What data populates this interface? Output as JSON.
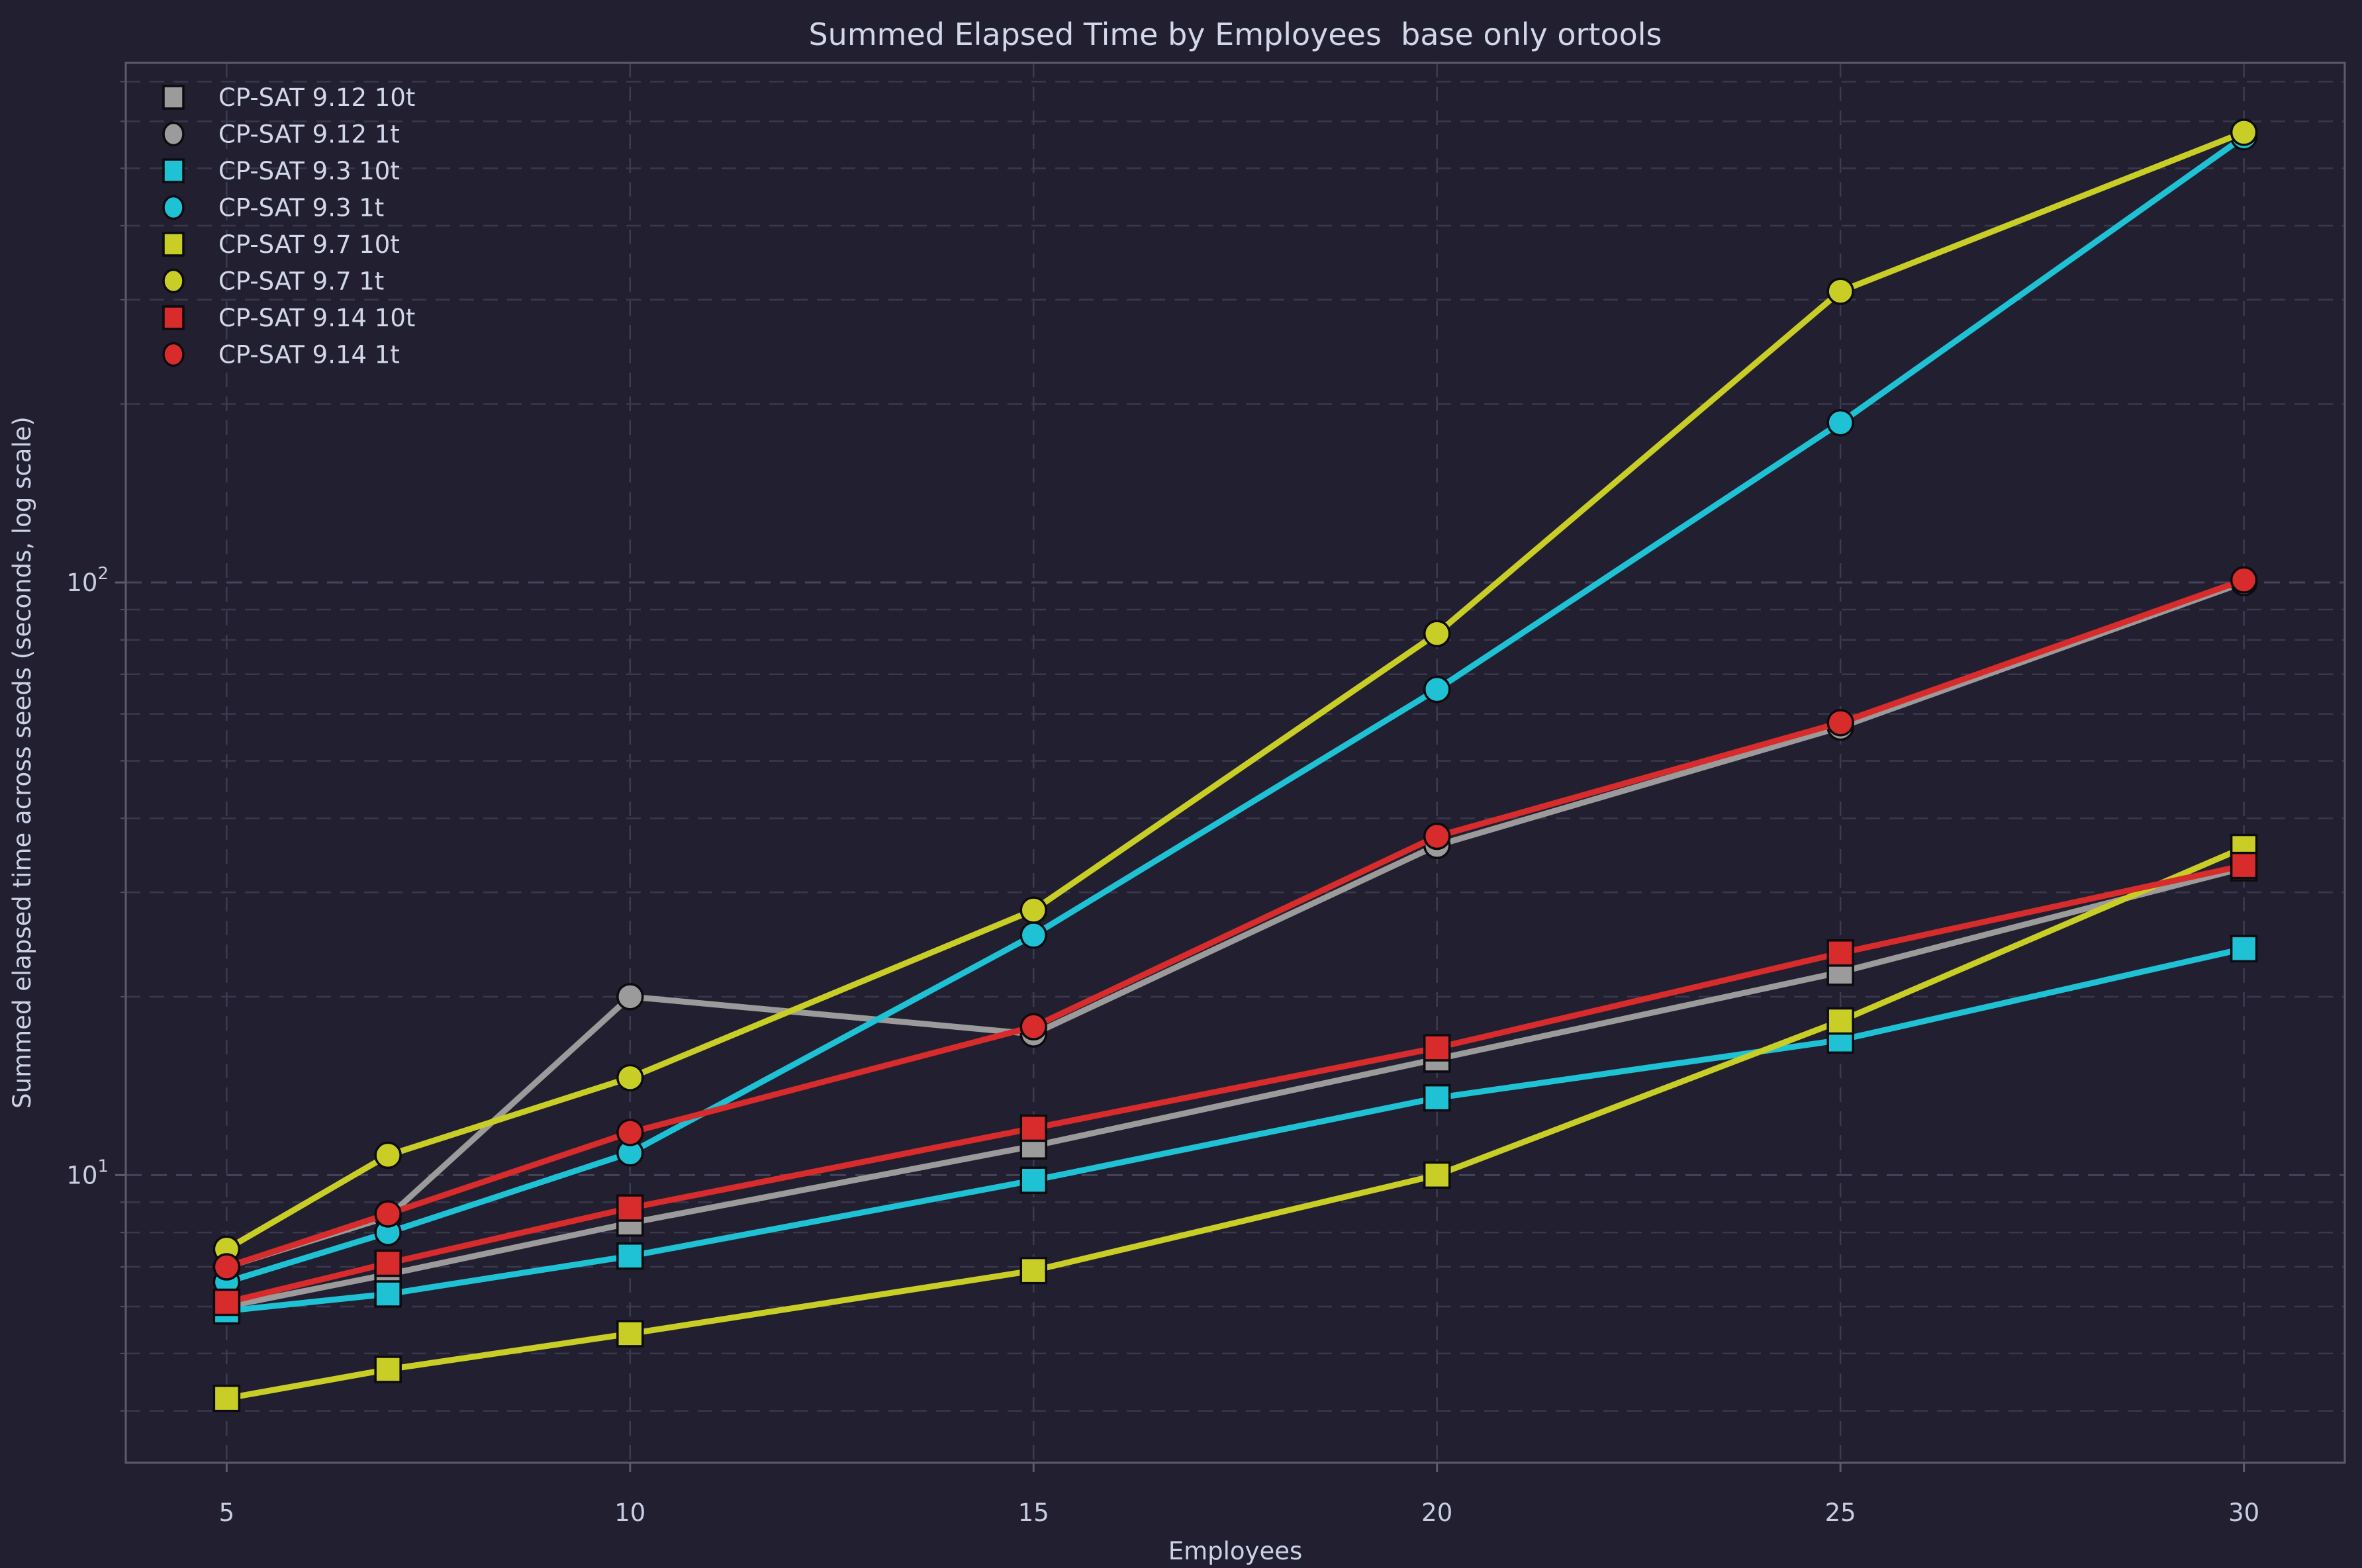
{
  "title": "Summed Elapsed Time by Employees  base only ortools",
  "x_axis": {
    "label": "Employees",
    "ticks": [
      5,
      10,
      15,
      20,
      25,
      30
    ],
    "lim": [
      3.75,
      31.25
    ]
  },
  "y_axis": {
    "label": "Summed elapsed time across seeds (seconds, log scale)",
    "scale": "log",
    "lim": [
      3.27,
      753
    ],
    "major_ticks": [
      10,
      100
    ],
    "major_tick_exponents": [
      1,
      2
    ],
    "minor_ticks": [
      4,
      5,
      6,
      7,
      8,
      9,
      20,
      30,
      40,
      50,
      60,
      70,
      80,
      90,
      200,
      300,
      400,
      500,
      600,
      700
    ]
  },
  "colors": {
    "background": "#222030",
    "text": "#d2d7ea",
    "grid": "#3a384c",
    "spine": "#5c5a6c",
    "gray": "#9b9b9b",
    "cyan": "#1fc2d4",
    "yellow": "#c9ce27",
    "red": "#d82b2b"
  },
  "chart_data": {
    "type": "line",
    "title": "Summed Elapsed Time by Employees  base only ortools",
    "xlabel": "Employees",
    "ylabel": "Summed elapsed time across seeds (seconds, log scale)",
    "x": [
      5,
      7,
      10,
      15,
      20,
      25,
      30
    ],
    "legend_position": "upper left",
    "grid": "dashed major+minor, log y-scale",
    "series": [
      {
        "name": "CP-SAT 9.12 10t",
        "color": "#9b9b9b",
        "marker": "square",
        "values": [
          6.0,
          6.8,
          8.3,
          11.2,
          15.7,
          22.0,
          33.0
        ]
      },
      {
        "name": "CP-SAT 9.12 1t",
        "color": "#9b9b9b",
        "marker": "circle",
        "values": [
          7.0,
          8.5,
          20.0,
          17.3,
          36.0,
          57.0,
          100.0
        ]
      },
      {
        "name": "CP-SAT 9.3 10t",
        "color": "#1fc2d4",
        "marker": "square",
        "values": [
          5.9,
          6.3,
          7.3,
          9.8,
          13.5,
          16.9,
          24.1
        ]
      },
      {
        "name": "CP-SAT 9.3 1t",
        "color": "#1fc2d4",
        "marker": "circle",
        "values": [
          6.6,
          8.0,
          10.9,
          25.4,
          66.0,
          186.0,
          565.0
        ]
      },
      {
        "name": "CP-SAT 9.7 10t",
        "color": "#c9ce27",
        "marker": "square",
        "values": [
          4.2,
          4.7,
          5.4,
          6.9,
          10.0,
          18.2,
          35.7
        ]
      },
      {
        "name": "CP-SAT 9.7 1t",
        "color": "#c9ce27",
        "marker": "circle",
        "values": [
          7.5,
          10.8,
          14.6,
          28.0,
          82.0,
          310.0,
          575.0
        ]
      },
      {
        "name": "CP-SAT 9.14 10t",
        "color": "#d82b2b",
        "marker": "square",
        "values": [
          6.1,
          7.1,
          8.8,
          12.0,
          16.4,
          23.7,
          33.3
        ]
      },
      {
        "name": "CP-SAT 9.14 1t",
        "color": "#d82b2b",
        "marker": "circle",
        "values": [
          7.0,
          8.6,
          11.8,
          17.8,
          37.3,
          58.0,
          101.0
        ]
      }
    ]
  }
}
